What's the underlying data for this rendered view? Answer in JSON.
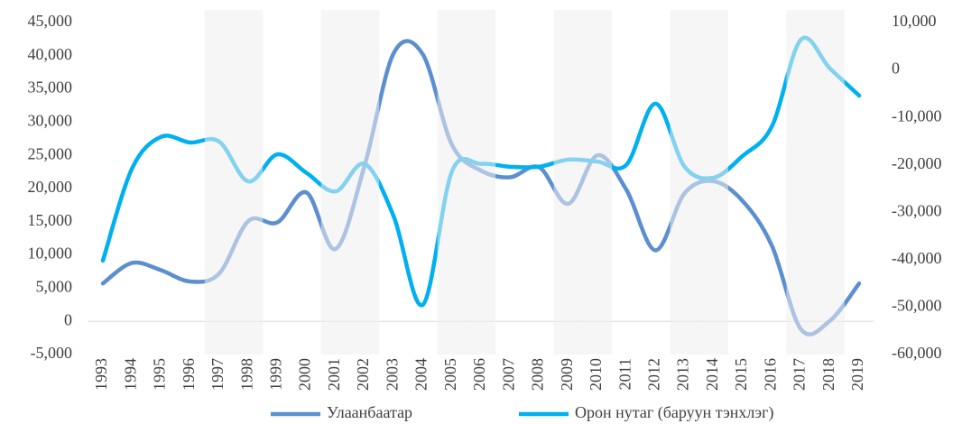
{
  "chart_data": {
    "type": "line",
    "categories": [
      "1993",
      "1994",
      "1995",
      "1996",
      "1997",
      "1998",
      "1999",
      "2000",
      "2001",
      "2002",
      "2003",
      "2004",
      "2005",
      "2006",
      "2007",
      "2008",
      "2009",
      "2010",
      "2011",
      "2012",
      "2013",
      "2014",
      "2015",
      "2016",
      "2017",
      "2018",
      "2019"
    ],
    "series": [
      {
        "name": "Улаанбаатар",
        "color": "#5b8fd0",
        "axis": "y",
        "values": [
          5700,
          8800,
          7700,
          6000,
          7200,
          15100,
          14900,
          19400,
          10900,
          23500,
          40400,
          40200,
          26600,
          22700,
          21700,
          23200,
          17700,
          25000,
          19800,
          10700,
          19300,
          21100,
          18100,
          11400,
          -1200,
          100,
          5700
        ]
      },
      {
        "name": "Орон нутаг (баруун тэнхлэг)",
        "color": "#00b0f0",
        "axis": "y2",
        "values": [
          -40200,
          -20800,
          -14100,
          -15300,
          -15100,
          -23500,
          -17800,
          -21700,
          -25600,
          -19800,
          -30900,
          -49500,
          -21400,
          -19800,
          -20400,
          -20400,
          -18900,
          -19300,
          -20000,
          -7100,
          -20400,
          -22700,
          -18100,
          -11900,
          6400,
          300,
          -5400
        ]
      }
    ],
    "ylim": [
      -5000,
      45000
    ],
    "yticks": [
      {
        "value": -5000,
        "label": "-5,000"
      },
      0,
      {
        "value": 5000,
        "label": "5,000"
      },
      {
        "value": 10000,
        "label": "10,000"
      },
      {
        "value": 15000,
        "label": "15,000"
      },
      {
        "value": 20000,
        "label": "20,000"
      },
      {
        "value": 25000,
        "label": "25,000"
      },
      {
        "value": 30000,
        "label": "30,000"
      },
      {
        "value": 35000,
        "label": "35,000"
      },
      {
        "value": 40000,
        "label": "40,000"
      },
      {
        "value": 45000,
        "label": "45,000"
      }
    ],
    "y2lim": [
      -60000,
      10000
    ],
    "y2ticks": [
      {
        "value": -60000,
        "label": "-60,000"
      },
      {
        "value": -50000,
        "label": "-50,000"
      },
      {
        "value": -40000,
        "label": "-40,000"
      },
      {
        "value": -30000,
        "label": "-30,000"
      },
      {
        "value": -20000,
        "label": "-20,000"
      },
      {
        "value": -10000,
        "label": "-10,000"
      },
      0,
      {
        "value": 10000,
        "label": "10,000"
      }
    ],
    "legend": "bottom"
  }
}
